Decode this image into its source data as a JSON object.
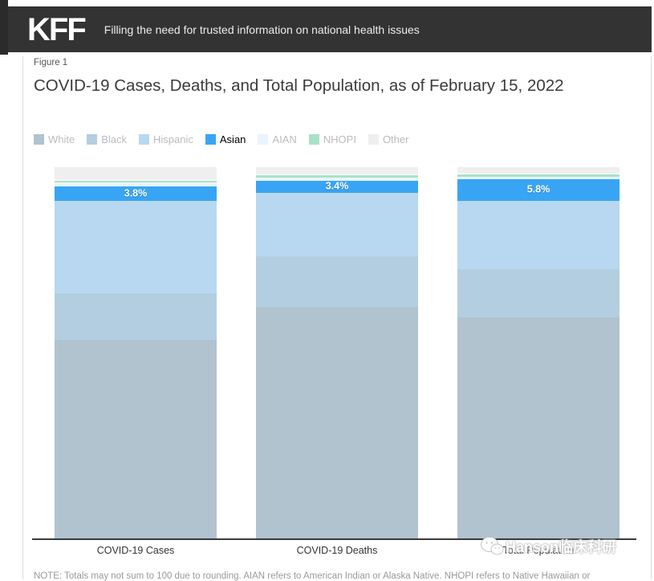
{
  "header": {
    "logo": "KFF",
    "tagline": "Filling the need for trusted information on national health issues"
  },
  "figure_label": "Figure 1",
  "title": "COVID-19 Cases, Deaths, and Total Population, as of February 15, 2022",
  "legend": {
    "items": [
      {
        "label": "White",
        "color": "#b0c3cf",
        "highlighted": false
      },
      {
        "label": "Black",
        "color": "#b3cee0",
        "highlighted": false
      },
      {
        "label": "Hispanic",
        "color": "#b7d8f0",
        "highlighted": false
      },
      {
        "label": "Asian",
        "color": "#38a5f4",
        "highlighted": true
      },
      {
        "label": "AIAN",
        "color": "#e9f5fc",
        "highlighted": false
      },
      {
        "label": "NHOPI",
        "color": "#a9e1c8",
        "highlighted": false
      },
      {
        "label": "Other",
        "color": "#efefef",
        "highlighted": false
      }
    ]
  },
  "chart_data": {
    "type": "bar",
    "stacked": true,
    "title": "COVID-19 Cases, Deaths, and Total Population, as of February 15, 2022",
    "categories": [
      "COVID-19 Cases",
      "COVID-19 Deaths",
      "Total Population"
    ],
    "series": [
      {
        "name": "White",
        "color": "#b0c3cf",
        "values": [
          53.5,
          62.4,
          59.6
        ]
      },
      {
        "name": "Black",
        "color": "#b3cee0",
        "values": [
          12.7,
          13.8,
          13.1
        ]
      },
      {
        "name": "Hispanic",
        "color": "#b7d8f0",
        "values": [
          25.0,
          17.0,
          18.5
        ]
      },
      {
        "name": "Asian",
        "color": "#38a5f4",
        "values": [
          3.8,
          3.4,
          5.8
        ],
        "value_labels": [
          "3.8%",
          "3.4%",
          "5.8%"
        ],
        "highlighted": true
      },
      {
        "name": "AIAN",
        "color": "#e9f5fc",
        "values": [
          1.0,
          0.9,
          0.7
        ]
      },
      {
        "name": "NHOPI",
        "color": "#a9e1c8",
        "values": [
          0.5,
          0.5,
          0.5
        ]
      },
      {
        "name": "Other",
        "color": "#efefef",
        "values": [
          3.5,
          2.0,
          1.8
        ]
      }
    ],
    "stack_order_top_to_bottom": [
      "Other",
      "NHOPI",
      "AIAN",
      "Asian",
      "Hispanic",
      "Black",
      "White"
    ],
    "ylim": [
      0,
      100
    ],
    "grid": false,
    "legend_position": "top",
    "value_labels_shown_for": "Asian"
  },
  "watermark": {
    "icon": "wechat-icon",
    "text": "Hanson临床科研"
  },
  "note": "NOTE: Totals may not sum to 100 due to rounding. AIAN refers to American Indian or Alaska Native. NHOPI refers to Native Hawaiian or"
}
